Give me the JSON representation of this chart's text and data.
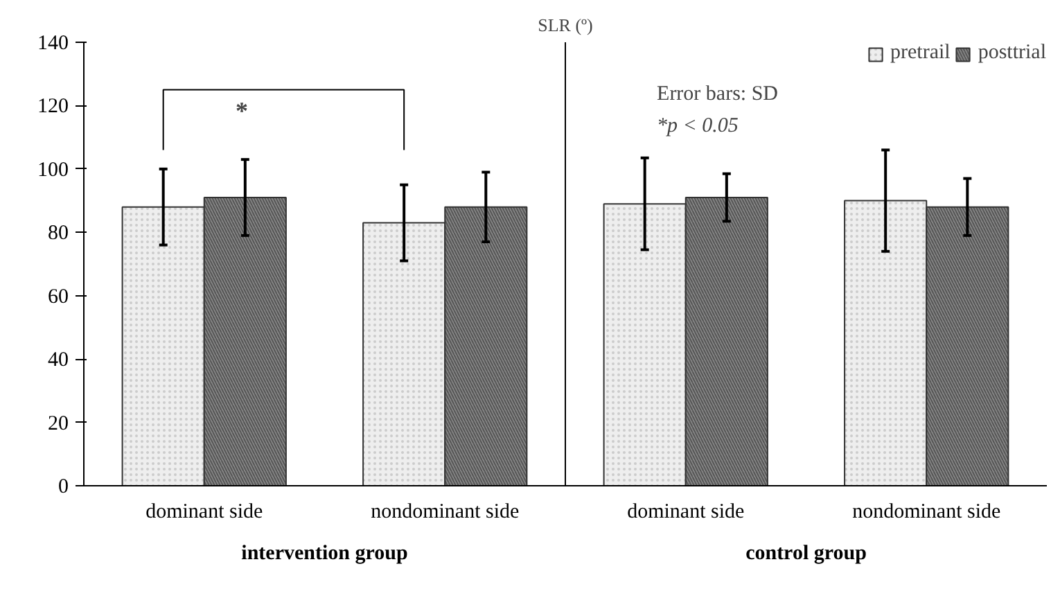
{
  "chart_data": {
    "type": "bar",
    "title": "SLR (º)",
    "categories": [
      "dominant side",
      "nondominant side",
      "dominant side",
      "nondominant side"
    ],
    "series": [
      {
        "name": "pretrail",
        "color": "#eeeeee",
        "values": [
          88,
          83,
          89,
          90
        ],
        "errors": [
          12,
          12,
          14.5,
          16
        ]
      },
      {
        "name": "posttrial",
        "color": "#888888",
        "values": [
          91,
          88,
          91,
          88
        ],
        "errors": [
          12,
          11,
          7.5,
          9
        ]
      }
    ],
    "ylim": [
      0,
      140
    ],
    "yticks": [
      0,
      20,
      40,
      60,
      80,
      100,
      120,
      140
    ],
    "grid": false,
    "legend": "top right",
    "annotations": [
      "Error bars: SD",
      "*p < 0.05",
      "*",
      "intervention group",
      "control group"
    ]
  }
}
